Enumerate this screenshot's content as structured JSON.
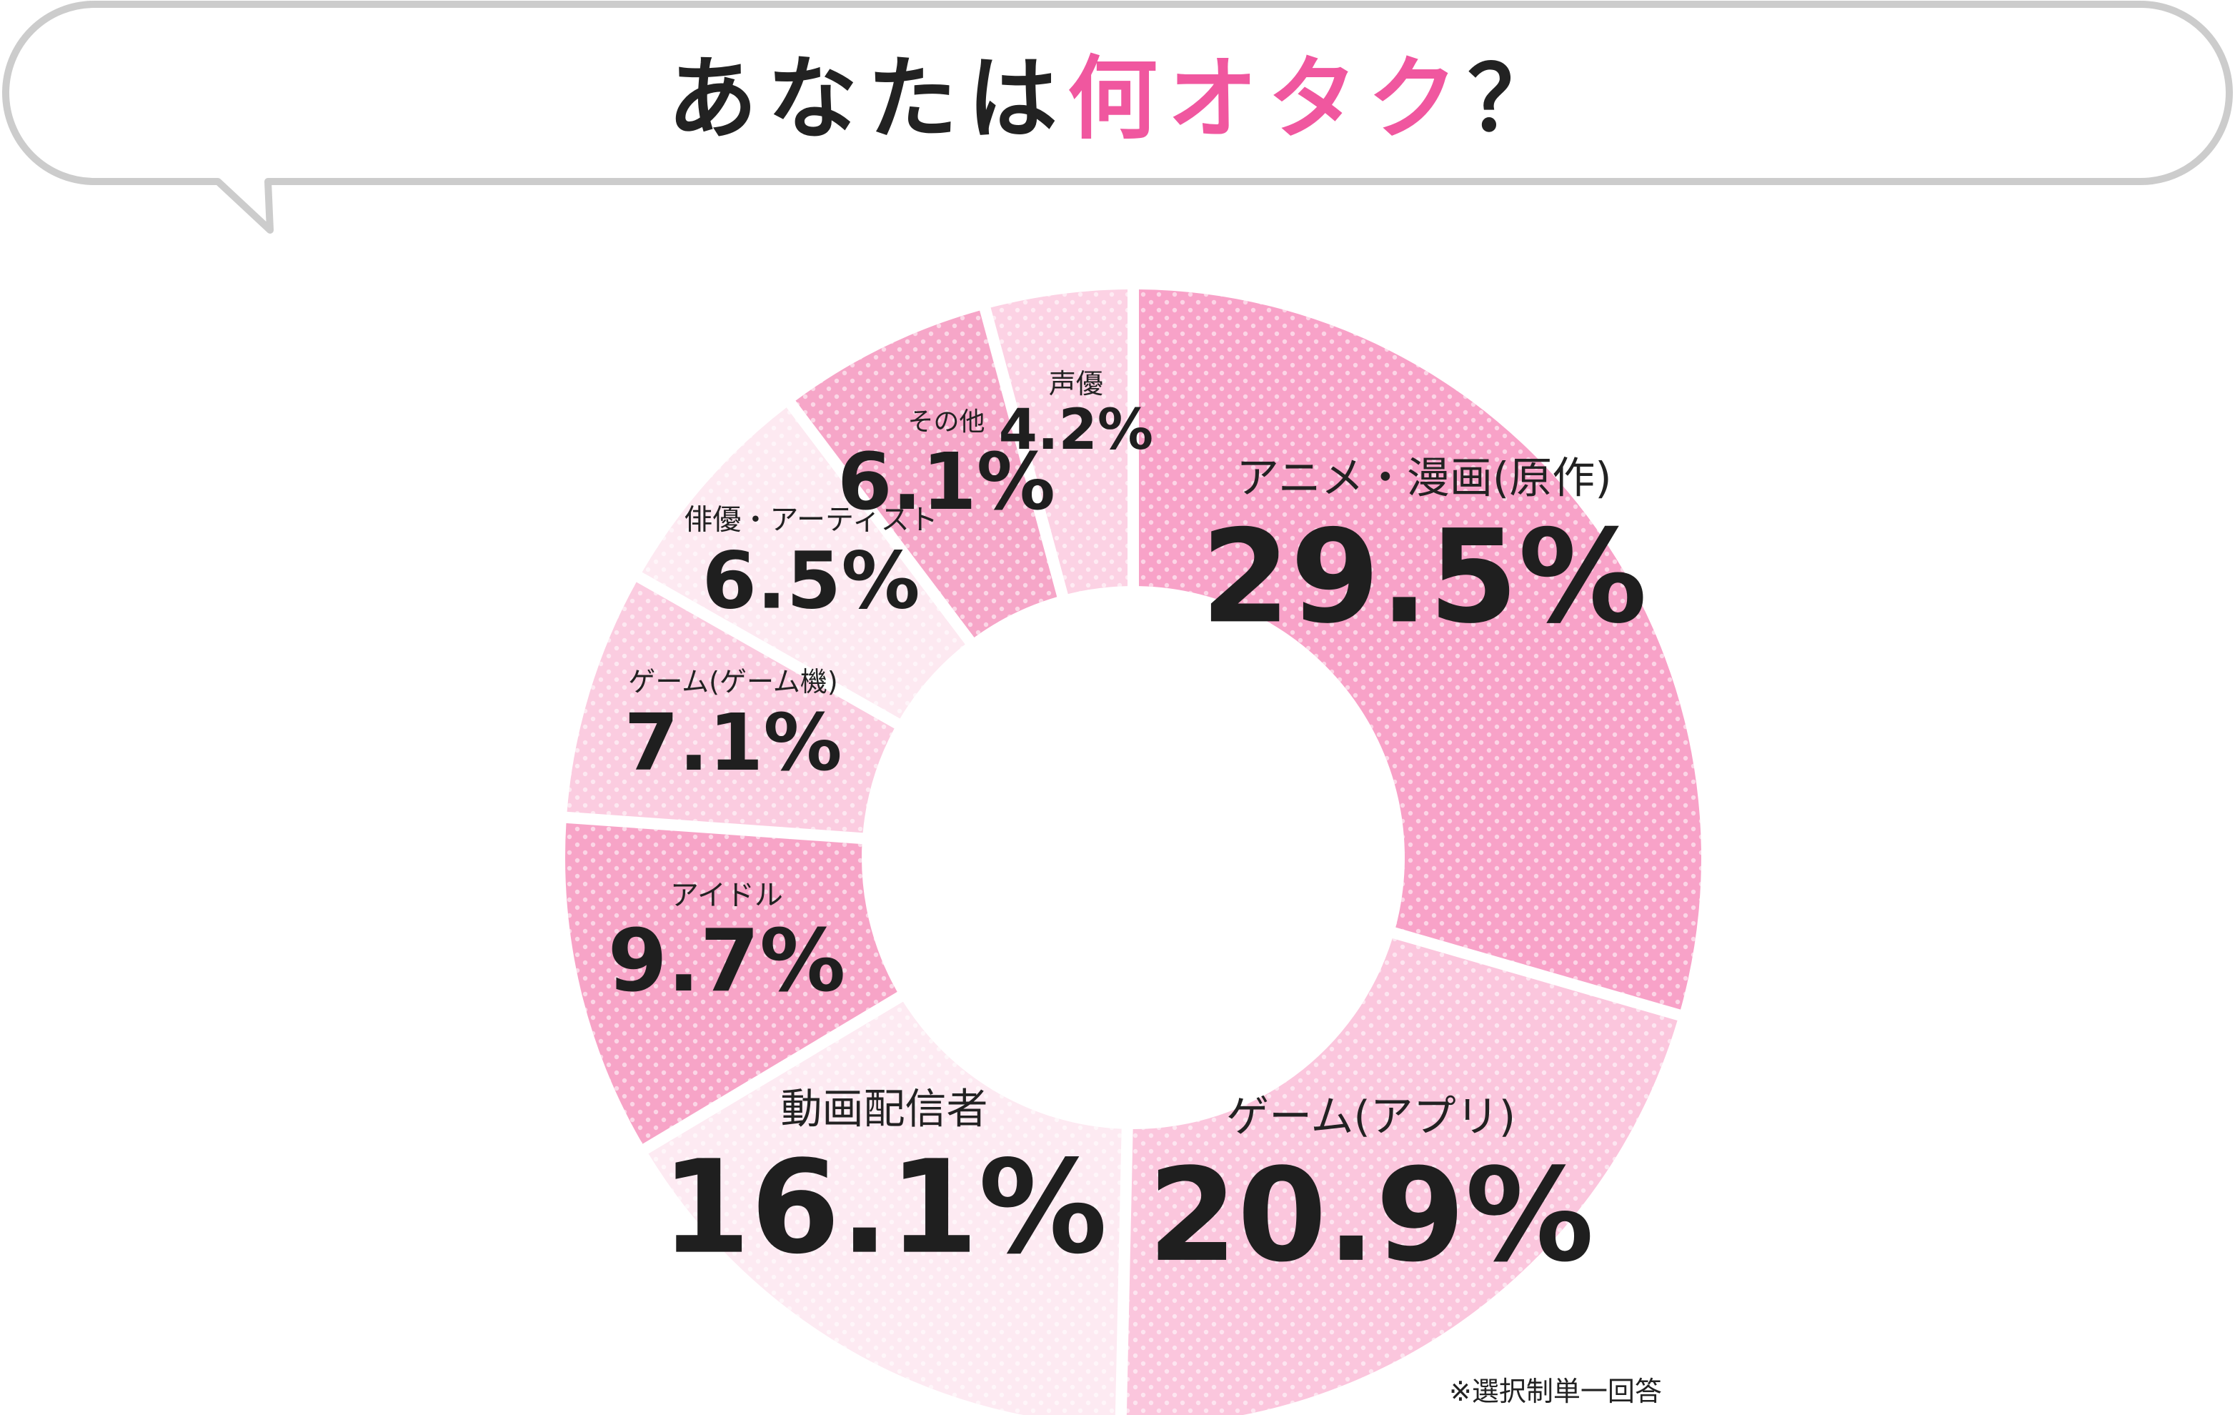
{
  "title": {
    "before": "あなたは",
    "highlight": "何オタク",
    "after": "？"
  },
  "colors": {
    "accent": "#f0579f",
    "bubble_border": "#cccccc",
    "text": "#222222"
  },
  "note": "※選択制単一回答",
  "chart_data": {
    "type": "pie",
    "donut": true,
    "unit": "%",
    "start": "12 o'clock, clockwise",
    "categories": [
      "アニメ・漫画(原作)",
      "ゲーム(アプリ)",
      "動画配信者",
      "アイドル",
      "ゲーム(ゲーム機)",
      "俳優・アーティスト",
      "その他",
      "声優"
    ],
    "values": [
      29.5,
      20.9,
      16.1,
      9.7,
      7.1,
      6.5,
      6.1,
      4.2
    ],
    "labels": [
      "29.5%",
      "20.9%",
      "16.1%",
      "9.7%",
      "7.1%",
      "6.5%",
      "6.1%",
      "4.2%"
    ],
    "colors": [
      "#f8a2c8",
      "#fbc6dd",
      "#fdeaf2",
      "#f7a4c7",
      "#fbcce0",
      "#fde9f1",
      "#f6a6c8",
      "#fcd2e4"
    ]
  }
}
